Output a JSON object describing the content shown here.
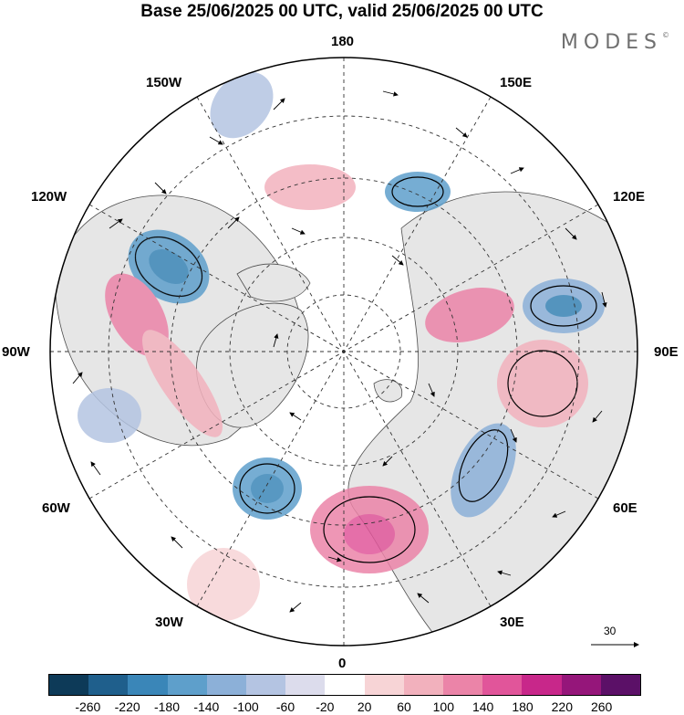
{
  "title": "Base 25/06/2025 00 UTC, valid 25/06/2025 00 UTC",
  "brand": {
    "name": "MODES",
    "mark": "©"
  },
  "longitude_labels": {
    "n180": "180",
    "e150": "150E",
    "e120": "120E",
    "e90": "90E",
    "e60": "60E",
    "e30": "30E",
    "s0": "0",
    "w30": "30W",
    "w60": "60W",
    "w90": "90W",
    "w120": "120W",
    "w150": "150W"
  },
  "reference_vector": {
    "label": "30"
  },
  "colorbar": {
    "colors": [
      "#0d3a58",
      "#1f5f8c",
      "#3a86b8",
      "#5e9fcb",
      "#8cb0d8",
      "#b4c4e2",
      "#dcdcec",
      "#ffffff",
      "#f7d4d6",
      "#f2b1bd",
      "#eb84a8",
      "#e1559a",
      "#c8278a",
      "#95167a",
      "#5b1067"
    ],
    "ticks": [
      "-260",
      "-220",
      "-180",
      "-140",
      "-100",
      "-60",
      "-20",
      "20",
      "60",
      "100",
      "140",
      "180",
      "220",
      "260"
    ]
  },
  "map_colors": {
    "land": "#e6e6e6",
    "ocean": "#ffffff",
    "coast": "#4d4d4d",
    "grid": "#333333"
  }
}
